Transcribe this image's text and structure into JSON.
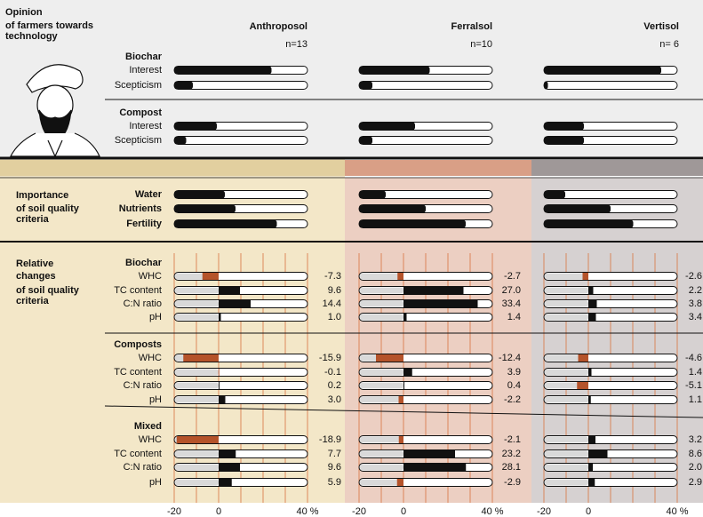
{
  "opinion": {
    "title": "Opinion",
    "subtitle_lines": [
      "of farmers towards",
      "technology"
    ],
    "groups": [
      {
        "name": "Biochar",
        "items": [
          {
            "label": "Interest",
            "values": [
              73,
              53,
              88
            ]
          },
          {
            "label": "Scepticism",
            "values": [
              14,
              10,
              3
            ]
          }
        ]
      },
      {
        "name": "Compost",
        "items": [
          {
            "label": "Interest",
            "values": [
              32,
              42,
              30
            ]
          },
          {
            "label": "Scepticism",
            "values": [
              9,
              10,
              30
            ]
          }
        ]
      }
    ]
  },
  "soils": [
    {
      "name": "Anthroposol",
      "n_label": "n=13",
      "color": "#f3e7c8"
    },
    {
      "name": "Ferralsol",
      "n_label": "n=10",
      "color": "#eccfc2"
    },
    {
      "name": "Vertisol",
      "n_label": "n= 6",
      "color": "#d6d1d1"
    }
  ],
  "importance": {
    "title": "Importance",
    "subtitle_lines": [
      "of soil quality",
      "criteria"
    ],
    "items": [
      {
        "label": "Water",
        "values": [
          38,
          20,
          16
        ]
      },
      {
        "label": "Nutrients",
        "values": [
          46,
          50,
          50
        ]
      },
      {
        "label": "Fertility",
        "values": [
          77,
          80,
          67
        ]
      }
    ]
  },
  "changes": {
    "title_lines": [
      "Relative",
      "changes"
    ],
    "subtitle_lines": [
      "of soil quality",
      "criteria"
    ],
    "xlim": [
      -20,
      40
    ],
    "xticks": [
      -20,
      0,
      {
        "value": 40,
        "label": "40 %"
      }
    ],
    "grid_values": [
      -20,
      -10,
      0,
      10,
      20,
      30,
      40
    ],
    "positive_color": "#111111",
    "negative_color": "#b5532a",
    "negative_label_color": "#c0562b",
    "grid_color": "#d9733f",
    "groups": [
      {
        "name": "Biochar",
        "items": [
          {
            "label": "WHC",
            "values": [
              -7.3,
              -2.7,
              -2.6
            ],
            "value_labels": [
              "-7.3",
              "-2.7",
              "-2.6"
            ]
          },
          {
            "label": "TC content",
            "values": [
              9.6,
              27.0,
              2.2
            ],
            "value_labels": [
              "9.6",
              "27.0",
              "2.2"
            ]
          },
          {
            "label": "C:N ratio",
            "values": [
              14.4,
              33.4,
              3.8
            ],
            "value_labels": [
              "14.4",
              "33.4",
              "3.8"
            ]
          },
          {
            "label": "pH",
            "values": [
              1.0,
              1.4,
              3.4
            ],
            "value_labels": [
              "1.0",
              "1.4",
              "3.4"
            ]
          }
        ]
      },
      {
        "name": "Composts",
        "items": [
          {
            "label": "WHC",
            "values": [
              -15.9,
              -12.4,
              -4.6
            ],
            "value_labels": [
              "-15.9",
              "-12.4",
              "-4.6"
            ]
          },
          {
            "label": "TC content",
            "values": [
              -0.1,
              3.9,
              1.4
            ],
            "value_labels": [
              "-0.1",
              "3.9",
              "1.4"
            ]
          },
          {
            "label": "C:N ratio",
            "values": [
              0.2,
              0.4,
              -5.1
            ],
            "value_labels": [
              "0.2",
              "0.4",
              "-5.1"
            ]
          },
          {
            "label": "pH",
            "values": [
              3.0,
              -2.2,
              1.1
            ],
            "value_labels": [
              "3.0",
              "-2.2",
              "1.1"
            ]
          }
        ]
      },
      {
        "name": "Mixed",
        "items": [
          {
            "label": "WHC",
            "values": [
              -18.9,
              -2.1,
              3.2
            ],
            "value_labels": [
              "-18.9",
              "-2.1",
              "3.2"
            ]
          },
          {
            "label": "TC content",
            "values": [
              7.7,
              23.2,
              8.6
            ],
            "value_labels": [
              "7.7",
              "23.2",
              "8.6"
            ]
          },
          {
            "label": "C:N ratio",
            "values": [
              9.6,
              28.1,
              2.0
            ],
            "value_labels": [
              "9.6",
              "28.1",
              "2.0"
            ]
          },
          {
            "label": "pH",
            "values": [
              5.9,
              -2.9,
              2.9
            ],
            "value_labels": [
              "5.9",
              "-2.9",
              "2.9"
            ]
          }
        ]
      }
    ]
  }
}
